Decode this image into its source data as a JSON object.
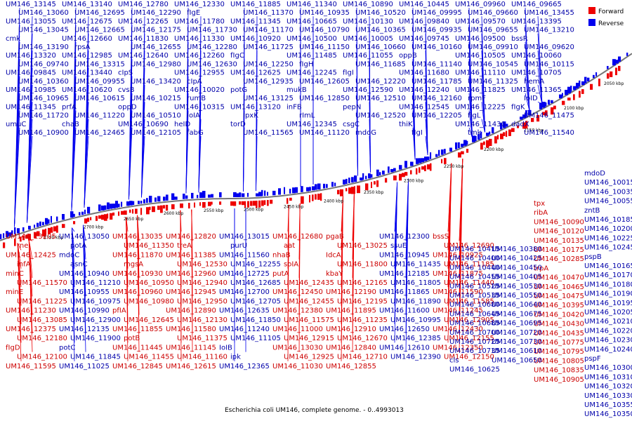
{
  "caption": "Escherichia coli UM146, complete genome. - 0..4993013",
  "legend": {
    "forward_label": "Forward",
    "reverse_label": "Reverse",
    "forward_color": "#ee0000",
    "reverse_color": "#0000ee"
  },
  "scale_ticks": [
    "2050 kbp",
    "2100 kbp",
    "2150 kbp",
    "2200 kbp",
    "2250 kbp",
    "2300 kbp",
    "2350 kbp",
    "2400 kbp",
    "2450 kbp",
    "2500 kbp",
    "2550 kbp",
    "2600 kbp",
    "2650 kbp",
    "2700 kbp",
    "2750 kbp"
  ],
  "reverse_genes": [
    "UM146_13145",
    "UM146_13140",
    "UM146_12780",
    "UM146_12330",
    "UM146_11885",
    "UM146_11340",
    "UM146_10890",
    "UM146_10445",
    "UM146_09960",
    "UM146_09665",
    "UM146_13060",
    "UM146_12695",
    "UM146_12290",
    "fIgE",
    "UM146_11370",
    "UM146_10935",
    "UM146_10520",
    "UM146_09995",
    "UM146_09660",
    "UM146_13455",
    "UM146_13055",
    "UM146_12675",
    "UM146_12265",
    "UM146_11780",
    "UM146_11345",
    "UM146_10665",
    "UM146_10130",
    "UM146_09840",
    "UM146_09570",
    "UM146_13395",
    "UM146_13045",
    "UM146_12665",
    "UM146_12175",
    "UM146_11730",
    "UM146_11170",
    "UM146_10790",
    "UM146_10365",
    "UM146_09935",
    "UM146_09655",
    "UM146_13210",
    "cmk",
    "UM146_12660",
    "UM146_11830",
    "UM146_11330",
    "UM146_10920",
    "UM146_10500",
    "UM146_10005",
    "UM146_09745",
    "UM146_09500",
    "bssR",
    "UM146_13190",
    "rpsA",
    "UM146_12655",
    "UM146_12280",
    "UM146_11725",
    "UM146_11150",
    "UM146_10660",
    "UM146_10160",
    "UM146_09910",
    "UM146_09620",
    "UM146_13320",
    "UM146_12985",
    "UM146_12640",
    "UM146_12260",
    "fIgC",
    "UM146_11485",
    "UM146_11055",
    "oppB",
    "UM146_10505",
    "UM146_10060",
    "UM146_09740",
    "UM146_13315",
    "UM146_12980",
    "UM146_12630",
    "UM146_12250",
    "fIgH",
    "UM146_11685",
    "UM146_11140",
    "UM146_10545",
    "UM146_10115",
    "UM146_09845",
    "UM146_13440",
    "cIpS",
    "UM146_12955",
    "UM146_12625",
    "UM146_12245",
    "fIgI",
    "UM146_11680",
    "UM146_11110",
    "UM146_10705",
    "UM146_10360",
    "UM146_09955",
    "UM146_13420",
    "cIpA",
    "UM146_12935",
    "UM146_12605",
    "UM146_12220",
    "UM146_11785",
    "UM146_11325",
    "hemA",
    "UM146_10985",
    "UM146_10620",
    "cvsB",
    "UM146_10020",
    "potG",
    "mukB",
    "UM146_12590",
    "UM146_12240",
    "UM146_11825",
    "UM146_11365",
    "UM146_10965",
    "UM146_10615",
    "UM146_10215",
    "rumB",
    "UM146_13125",
    "UM146_12850",
    "UM146_12510",
    "UM146_12160",
    "rpmF",
    "IoID",
    "UM146_11345",
    "prfA",
    "oppD",
    "UM146_10315",
    "UM146_13120",
    "inFB",
    "pepN",
    "UM146_12545",
    "UM146_12225",
    "fIgK",
    "UM146_11720",
    "UM146_11220",
    "UM146_10510",
    "IoIA",
    "IpxK",
    "rImL",
    "UM146_12520",
    "UM146_12205",
    "fIgL",
    "UM146_11475",
    "umuC",
    "chaB",
    "UM146_10690",
    "heID",
    "torD",
    "UM146_12345",
    "csgC",
    "thiK",
    "UM146_11430",
    "dadX",
    "UM146_10900",
    "UM146_12465",
    "UM146_12105",
    "fabG",
    "UM146_11565",
    "UM146_11120",
    "mdoG",
    "fIgI",
    "tmk",
    "UM146_11540"
  ],
  "forward_genes": [
    "UM146_13205",
    "UM146_13050",
    "UM146_13035",
    "UM146_12820",
    "UM146_13015",
    "UM146_12680",
    "pgaB",
    "UM146_12300",
    "bssS",
    "rne",
    "potA",
    "UM146_11350",
    "treA",
    "purU",
    "aat",
    "UM146_13025",
    "ssuE",
    "UM146_12690",
    "UM146_12425",
    "mdoC",
    "UM146_11870",
    "UM146_11385",
    "UM146_11560",
    "nhaB",
    "IdcA",
    "UM146_10945",
    "UM146_10925",
    "infA",
    "asnC",
    "mgsA",
    "UM146_12530",
    "UM146_12255",
    "soIA",
    "UM146_11800",
    "UM146_11435",
    "UM146_11185",
    "minC",
    "UM146_10940",
    "UM146_10930",
    "UM146_12960",
    "UM146_12725",
    "putA",
    "kbaY",
    "UM146_12185",
    "UM146_11875",
    "UM146_11570",
    "UM146_11210",
    "UM146_10950",
    "UM146_12940",
    "UM146_12685",
    "UM146_12435",
    "UM146_12165",
    "UM146_11805",
    "UM146_11440",
    "minE",
    "UM146_10955",
    "UM146_10960",
    "UM146_12945",
    "UM146_12700",
    "UM146_12450",
    "UM146_12190",
    "UM146_11865",
    "UM146_11590",
    "UM146_11225",
    "UM146_10975",
    "UM146_10980",
    "UM146_12950",
    "UM146_12705",
    "UM146_12455",
    "UM146_12195",
    "UM146_11890",
    "UM146_11585",
    "UM146_11230",
    "UM146_10990",
    "pfIA",
    "UM146_12890",
    "UM146_12635",
    "UM146_12380",
    "UM146_11895",
    "UM146_11600",
    "UM146_11245",
    "UM146_13085",
    "UM146_12900",
    "UM146_12645",
    "UM146_12130",
    "UM146_11850",
    "UM146_11575",
    "UM146_11235",
    "UM146_10995",
    "UM146_12905",
    "UM146_12375",
    "UM146_12135",
    "UM146_11855",
    "UM146_11580",
    "UM146_11240",
    "UM146_11000",
    "UM146_12910",
    "UM146_12650",
    "UM146_12430",
    "UM146_12180",
    "UM146_11900",
    "potB",
    "UM146_11375",
    "UM146_11105",
    "UM146_12915",
    "UM146_12670",
    "UM146_12385",
    "UM146_12155",
    "fIgD",
    "potC",
    "UM146_11445",
    "UM146_11145",
    "IoIB",
    "UM146_13030",
    "UM146_12840",
    "UM146_12610",
    "UM146_12350",
    "UM146_12100",
    "UM146_11845",
    "UM146_11455",
    "UM146_11160",
    "ipk",
    "UM146_12925",
    "UM146_12710",
    "UM146_12390",
    "UM146_12150",
    "UM146_11595",
    "UM146_11025",
    "UM146_12845",
    "UM146_12615",
    "UM146_12365",
    "UM146_11030",
    "UM146_12855"
  ],
  "right_genes_rev": [
    "mdoD",
    "UM146_10015",
    "UM146_10035",
    "UM146_10055",
    "zntB",
    "UM146_10185",
    "UM146_10200",
    "UM146_10225",
    "UM146_10245",
    "pspB",
    "UM146_10165",
    "UM146_10170",
    "UM146_10180",
    "UM146_10190",
    "UM146_10195",
    "UM146_10205",
    "UM146_10210",
    "UM146_10220",
    "UM146_10230",
    "UM146_10240",
    "pspF",
    "UM146_10300",
    "UM146_10310",
    "UM146_10320",
    "UM146_10330",
    "UM146_10355",
    "UM146_10350"
  ],
  "right_genes_fwd": [
    "tpx",
    "ribA",
    "UM146_10090",
    "UM146_10120",
    "UM146_10135",
    "UM146_10175",
    "UM146_10285",
    "trpA",
    "UM146_10470",
    "UM146_10465",
    "UM146_10475",
    "UM146_10395",
    "UM146_10420",
    "UM146_10430",
    "UM146_10435",
    "UM146_10775",
    "UM146_10795",
    "UM146_10805",
    "UM146_10835",
    "UM146_10905"
  ],
  "right_mid_genes": [
    "UM146_10415",
    "UM146_10380",
    "UM146_10400",
    "UM146_10425",
    "UM146_10440",
    "UM146_10450",
    "UM146_10455",
    "UM146_10405",
    "UM146_10525",
    "UM146_10530",
    "UM146_10535",
    "UM146_10550",
    "UM146_10680",
    "UM146_10640",
    "UM146_10645",
    "UM146_10675",
    "UM146_10685",
    "UM146_10695",
    "UM146_10700",
    "UM146_10720",
    "UM146_10725",
    "UM146_10730",
    "UM146_10735",
    "UM146_10610",
    "cls",
    "UM146_10650",
    "UM146_10625"
  ]
}
